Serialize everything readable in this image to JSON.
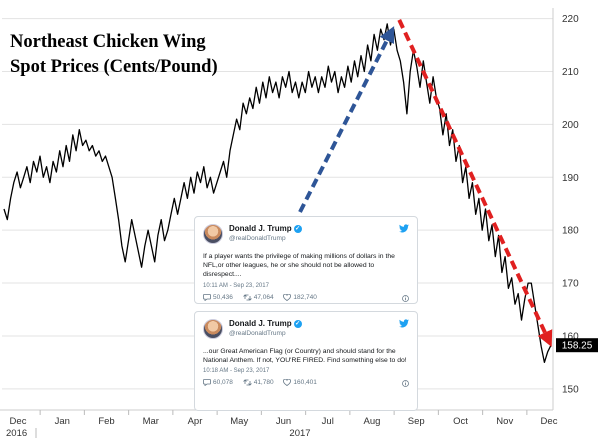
{
  "chart_data": {
    "type": "line",
    "title_lines": [
      "Northeast Chicken Wing",
      "Spot Prices (Cents/Pound)"
    ],
    "ylim": [
      146,
      222
    ],
    "y_ticks": [
      150,
      160,
      170,
      180,
      190,
      200,
      210,
      220
    ],
    "x_month_labels": [
      "Dec",
      "Jan",
      "Feb",
      "Mar",
      "Apr",
      "May",
      "Jun",
      "Jul",
      "Aug",
      "Sep",
      "Oct",
      "Nov",
      "Dec"
    ],
    "year_labels": [
      "2016",
      "2017"
    ],
    "last_value_label": "158.25",
    "last_value": 158.25,
    "line_color": "#000000",
    "grid": "horizontal",
    "series": [
      {
        "values": [
          184,
          182,
          186,
          189,
          191,
          188,
          190,
          192,
          189,
          193,
          191,
          194,
          190,
          192,
          189,
          193,
          191,
          195,
          192,
          196,
          193,
          198,
          195,
          199,
          196,
          197,
          195,
          196,
          194,
          195,
          193,
          194,
          192,
          190,
          186,
          182,
          177,
          174,
          178,
          182,
          179,
          176,
          173,
          177,
          180,
          177,
          174,
          179,
          182,
          178,
          180,
          183,
          186,
          183,
          186,
          189,
          186,
          190,
          187,
          191,
          189,
          192,
          188,
          190,
          187,
          189,
          191,
          193,
          190,
          195,
          198,
          201,
          199,
          204,
          202,
          205,
          203,
          207,
          204,
          208,
          205,
          209,
          206,
          208,
          205,
          209,
          207,
          210,
          206,
          208,
          205,
          208,
          206,
          210,
          207,
          209,
          206,
          209,
          207,
          211,
          208,
          210,
          206,
          209,
          207,
          211,
          208,
          212,
          209,
          213,
          210,
          215,
          212,
          217,
          214,
          218,
          216,
          219,
          215,
          218,
          214,
          212,
          208,
          202,
          210,
          214,
          211,
          207,
          212,
          208,
          204,
          209,
          205,
          203,
          198,
          202,
          196,
          199,
          193,
          196,
          189,
          192,
          186,
          189,
          183,
          186,
          180,
          184,
          178,
          181,
          175,
          179,
          172,
          175,
          169,
          171,
          166,
          168,
          163,
          167,
          170,
          170,
          166,
          162,
          158,
          155,
          157,
          158.25
        ]
      }
    ],
    "annotations": [
      {
        "type": "arrow",
        "color": "#2e5597",
        "style": "dashed",
        "direction": "rising into September peak"
      },
      {
        "type": "arrow",
        "color": "#e02020",
        "style": "dashed",
        "direction": "falling from September peak to December"
      }
    ]
  },
  "tweets": [
    {
      "name": "Donald J. Trump",
      "handle": "@realDonaldTrump",
      "text": "If a player wants the privilege of making millions of dollars in the NFL,or other leagues, he or she should not be allowed to disrespect....",
      "time": "10:11 AM - Sep 23, 2017",
      "replies": "50,436",
      "retweets": "47,064",
      "likes": "182,740"
    },
    {
      "name": "Donald J. Trump",
      "handle": "@realDonaldTrump",
      "text": "...our Great American Flag (or Country) and should stand for the National Anthem. If not, YOU'RE FIRED. Find something else to do!",
      "time": "10:18 AM - Sep 23, 2017",
      "replies": "60,078",
      "retweets": "41,780",
      "likes": "160,401"
    }
  ],
  "colors": {
    "twitter_blue": "#1da1f2",
    "label_box": "#000000",
    "arrow_blue": "#2e5597",
    "arrow_red": "#e02020"
  }
}
